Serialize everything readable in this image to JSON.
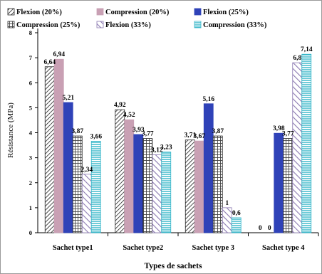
{
  "chart_data": {
    "type": "bar",
    "xlabel": "Types de sachets",
    "ylabel": "Résistance (MPa)",
    "ylim": [
      0,
      8
    ],
    "yticks": [
      "0",
      "1",
      "2",
      "3",
      "4",
      "5",
      "6",
      "7",
      "8"
    ],
    "grid": false,
    "legend_position": "top",
    "categories": [
      "Sachet type1",
      "Sachet type2",
      "Sachet type 3",
      "Sachet type 4"
    ],
    "series": [
      {
        "name": "Flexion (20%)",
        "values": [
          6.64,
          4.92,
          3.71,
          0
        ],
        "labels": [
          "6,64",
          "4,92",
          "3,71",
          "0"
        ],
        "pattern": "diag-thin",
        "color": "#1a1a1a",
        "fill": "#ffffff"
      },
      {
        "name": "Compression (20%)",
        "values": [
          6.94,
          4.52,
          3.67,
          0
        ],
        "labels": [
          "6,94",
          "4,52",
          "3,67",
          "0"
        ],
        "pattern": "solid",
        "color": "#c9a0b4",
        "fill": "#c9a0b4"
      },
      {
        "name": "Flexion (25%)",
        "values": [
          5.21,
          3.93,
          5.16,
          3.98
        ],
        "labels": [
          "5,21",
          "3,93",
          "5,16",
          "3,98"
        ],
        "pattern": "solid",
        "color": "#2f42b8",
        "fill": "#2f42b8"
      },
      {
        "name": "Compression (25%)",
        "values": [
          3.87,
          3.77,
          3.87,
          3.77
        ],
        "labels": [
          "3,87",
          "3,77",
          "3,87",
          "3,77"
        ],
        "pattern": "grid",
        "color": "#333333",
        "fill": "#ffffff"
      },
      {
        "name": "Flexion (33%)",
        "values": [
          2.34,
          3.12,
          1,
          6.8
        ],
        "labels": [
          "2,34",
          "3,12",
          "1",
          "6,8"
        ],
        "pattern": "diag-wide",
        "color": "#8a78b0",
        "fill": "#ffffff"
      },
      {
        "name": "Compression (33%)",
        "values": [
          3.66,
          3.23,
          0.6,
          7.14
        ],
        "labels": [
          "3,66",
          "3,23",
          "0,6",
          "7,14"
        ],
        "pattern": "hlines",
        "color": "#33b5c8",
        "fill": "#ffffff"
      }
    ]
  }
}
